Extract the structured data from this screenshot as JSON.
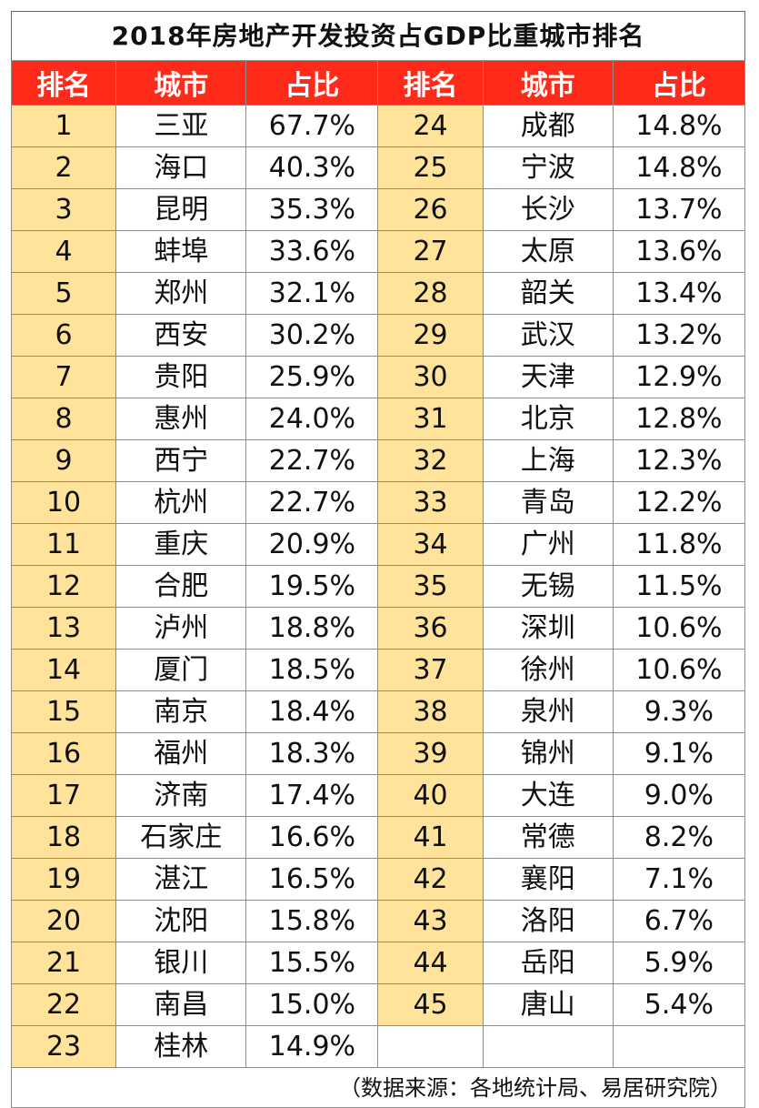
{
  "title": "2018年房地产开发投资占GDP比重城市排名",
  "headers": [
    "排名",
    "城市",
    "占比",
    "排名",
    "城市",
    "占比"
  ],
  "rows_left": [
    {
      "rank": "1",
      "city": "三亚",
      "pct": "67.7%"
    },
    {
      "rank": "2",
      "city": "海口",
      "pct": "40.3%"
    },
    {
      "rank": "3",
      "city": "昆明",
      "pct": "35.3%"
    },
    {
      "rank": "4",
      "city": "蚌埠",
      "pct": "33.6%"
    },
    {
      "rank": "5",
      "city": "郑州",
      "pct": "32.1%"
    },
    {
      "rank": "6",
      "city": "西安",
      "pct": "30.2%"
    },
    {
      "rank": "7",
      "city": "贵阳",
      "pct": "25.9%"
    },
    {
      "rank": "8",
      "city": "惠州",
      "pct": "24.0%"
    },
    {
      "rank": "9",
      "city": "西宁",
      "pct": "22.7%"
    },
    {
      "rank": "10",
      "city": "杭州",
      "pct": "22.7%"
    },
    {
      "rank": "11",
      "city": "重庆",
      "pct": "20.9%"
    },
    {
      "rank": "12",
      "city": "合肥",
      "pct": "19.5%"
    },
    {
      "rank": "13",
      "city": "泸州",
      "pct": "18.8%"
    },
    {
      "rank": "14",
      "city": "厦门",
      "pct": "18.5%"
    },
    {
      "rank": "15",
      "city": "南京",
      "pct": "18.4%"
    },
    {
      "rank": "16",
      "city": "福州",
      "pct": "18.3%"
    },
    {
      "rank": "17",
      "city": "济南",
      "pct": "17.4%"
    },
    {
      "rank": "18",
      "city": "石家庄",
      "pct": "16.6%"
    },
    {
      "rank": "19",
      "city": "湛江",
      "pct": "16.5%"
    },
    {
      "rank": "20",
      "city": "沈阳",
      "pct": "15.8%"
    },
    {
      "rank": "21",
      "city": "银川",
      "pct": "15.5%"
    },
    {
      "rank": "22",
      "city": "南昌",
      "pct": "15.0%"
    },
    {
      "rank": "23",
      "city": "桂林",
      "pct": "14.9%"
    }
  ],
  "rows_right": [
    {
      "rank": "24",
      "city": "成都",
      "pct": "14.8%"
    },
    {
      "rank": "25",
      "city": "宁波",
      "pct": "14.8%"
    },
    {
      "rank": "26",
      "city": "长沙",
      "pct": "13.7%"
    },
    {
      "rank": "27",
      "city": "太原",
      "pct": "13.6%"
    },
    {
      "rank": "28",
      "city": "韶关",
      "pct": "13.4%"
    },
    {
      "rank": "29",
      "city": "武汉",
      "pct": "13.2%"
    },
    {
      "rank": "30",
      "city": "天津",
      "pct": "12.9%"
    },
    {
      "rank": "31",
      "city": "北京",
      "pct": "12.8%"
    },
    {
      "rank": "32",
      "city": "上海",
      "pct": "12.3%"
    },
    {
      "rank": "33",
      "city": "青岛",
      "pct": "12.2%"
    },
    {
      "rank": "34",
      "city": "广州",
      "pct": "11.8%"
    },
    {
      "rank": "35",
      "city": "无锡",
      "pct": "11.5%"
    },
    {
      "rank": "36",
      "city": "深圳",
      "pct": "10.6%"
    },
    {
      "rank": "37",
      "city": "徐州",
      "pct": "10.6%"
    },
    {
      "rank": "38",
      "city": "泉州",
      "pct": "9.3%"
    },
    {
      "rank": "39",
      "city": "锦州",
      "pct": "9.1%"
    },
    {
      "rank": "40",
      "city": "大连",
      "pct": "9.0%"
    },
    {
      "rank": "41",
      "city": "常德",
      "pct": "8.2%"
    },
    {
      "rank": "42",
      "city": "襄阳",
      "pct": "7.1%"
    },
    {
      "rank": "43",
      "city": "洛阳",
      "pct": "6.7%"
    },
    {
      "rank": "44",
      "city": "岳阳",
      "pct": "5.9%"
    },
    {
      "rank": "45",
      "city": "唐山",
      "pct": "5.4%"
    }
  ],
  "source": "（数据来源：各地统计局、易居研究院）",
  "colors": {
    "header_bg": "#ff2a1a",
    "rank_bg": "#ffe39b",
    "border": "#8c8c8c"
  }
}
